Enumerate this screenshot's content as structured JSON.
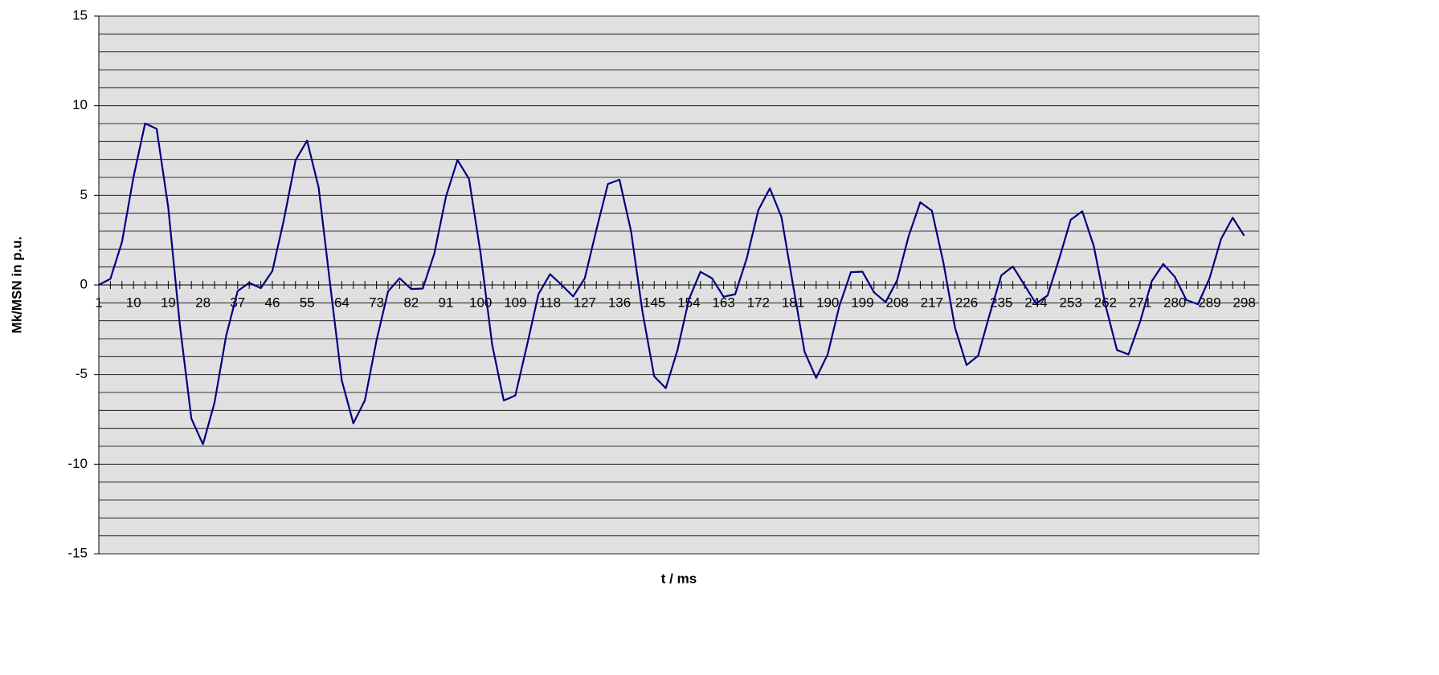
{
  "chart_data": {
    "type": "line",
    "x_label": "t / ms",
    "y_label": "Mk/MSN in p.u.",
    "categories": [
      "1",
      null,
      null,
      "10",
      null,
      null,
      "19",
      null,
      null,
      "28",
      null,
      null,
      "37",
      null,
      null,
      "46",
      null,
      null,
      "55",
      null,
      null,
      "64",
      null,
      null,
      "73",
      null,
      null,
      "82",
      null,
      null,
      "91",
      null,
      null,
      "100",
      null,
      null,
      "109",
      null,
      null,
      "118",
      null,
      null,
      "127",
      null,
      null,
      "136",
      null,
      null,
      "145",
      null,
      null,
      "154",
      null,
      null,
      "163",
      null,
      null,
      "172",
      null,
      null,
      "181",
      null,
      null,
      "190",
      null,
      null,
      "199",
      null,
      null,
      "208",
      null,
      null,
      "217",
      null,
      null,
      "226",
      null,
      null,
      "235",
      null,
      null,
      "244",
      null,
      null,
      "253",
      null,
      null,
      "262",
      null,
      null,
      "271",
      null,
      null,
      "280",
      null,
      null,
      "289",
      null,
      null,
      "298"
    ],
    "values": [
      0,
      0.34,
      2.39,
      6.03,
      9.01,
      8.71,
      4.32,
      -2.21,
      -7.46,
      -8.89,
      -6.57,
      -2.85,
      -0.34,
      0.12,
      -0.18,
      0.78,
      3.65,
      6.95,
      8.05,
      5.43,
      0,
      -5.33,
      -7.72,
      -6.43,
      -3.1,
      -0.36,
      0.37,
      -0.23,
      -0.2,
      1.76,
      4.91,
      6.97,
      5.91,
      1.74,
      -3.34,
      -6.45,
      -6.17,
      -3.39,
      -0.51,
      0.6,
      0,
      -0.64,
      0.37,
      3.06,
      5.63,
      5.87,
      3,
      -1.54,
      -5.1,
      -5.76,
      -3.67,
      -0.81,
      0.73,
      0.37,
      -0.66,
      -0.52,
      1.48,
      4.17,
      5.39,
      3.79,
      0,
      -3.73,
      -5.19,
      -3.87,
      -1.19,
      0.71,
      0.74,
      -0.41,
      -0.96,
      0.26,
      2.74,
      4.61,
      4.14,
      1.24,
      -2.38,
      -4.47,
      -3.95,
      -1.63,
      0.53,
      1.03,
      0,
      -1.04,
      -0.59,
      1.45,
      3.63,
      4.11,
      2.16,
      -1.11,
      -3.63,
      -3.88,
      -2.05,
      0.2,
      1.17,
      0.45,
      -0.84,
      -1.08,
      0.37,
      2.57,
      3.75,
      2.74
    ],
    "color": "#000080",
    "ylim": [
      -15,
      15
    ],
    "yticks": [
      -15,
      -10,
      -5,
      0,
      5,
      10,
      15
    ],
    "minor_yticks": [
      -14,
      -13,
      -12,
      -11,
      -9,
      -8,
      -7,
      -6,
      -4,
      -3,
      -2,
      -1,
      1,
      2,
      3,
      4,
      6,
      7,
      8,
      9,
      11,
      12,
      13,
      14
    ],
    "grid": true
  }
}
